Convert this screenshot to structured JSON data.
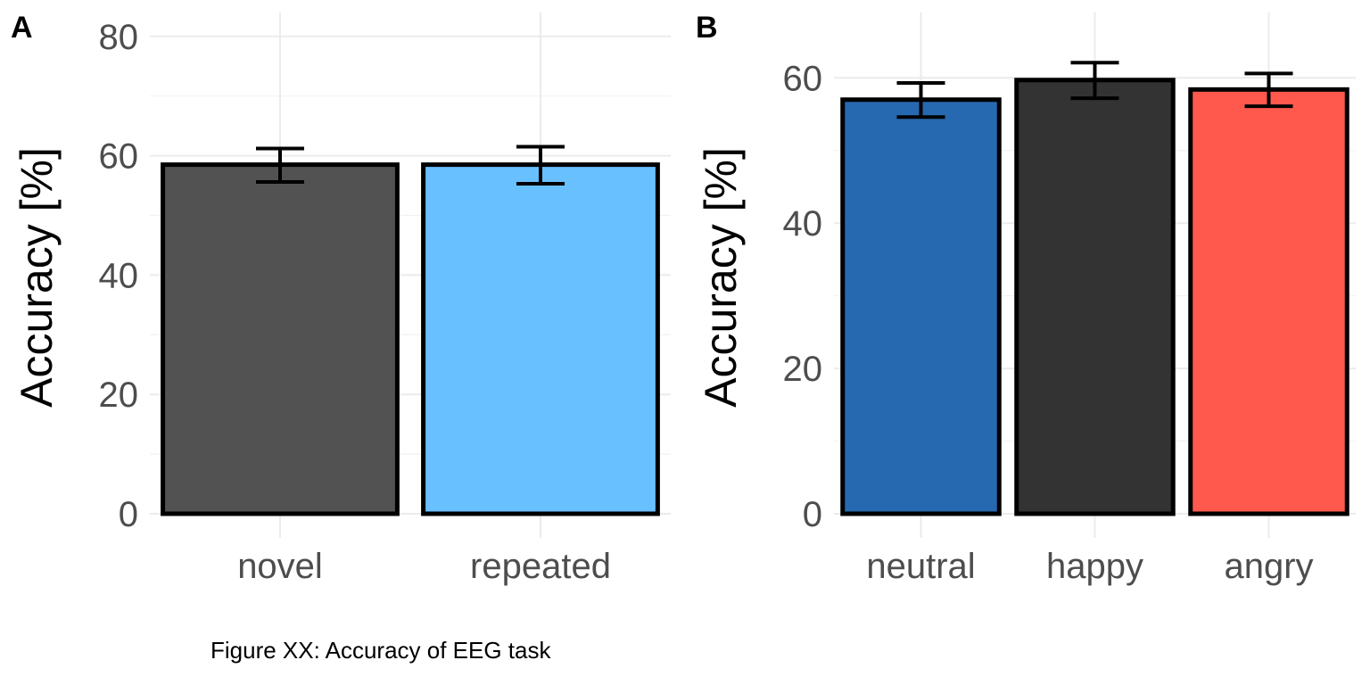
{
  "caption": "Figure XX: Accuracy of EEG task",
  "chart_data": [
    {
      "panel": "A",
      "type": "bar",
      "ylabel": "Accuracy [%]",
      "xlabel": "",
      "ylim": [
        0,
        84
      ],
      "y_ticks": [
        0,
        20,
        40,
        60,
        80
      ],
      "categories": [
        "novel",
        "repeated"
      ],
      "values": [
        58.5,
        58.5
      ],
      "error_low": [
        55.6,
        55.3
      ],
      "error_high": [
        61.2,
        61.5
      ],
      "colors": [
        "#525252",
        "#69C0FF"
      ],
      "grid": true,
      "legend": "none"
    },
    {
      "panel": "B",
      "type": "bar",
      "ylabel": "Accuracy [%]",
      "xlabel": "",
      "ylim": [
        0,
        69
      ],
      "y_ticks": [
        0,
        20,
        40,
        60
      ],
      "categories": [
        "neutral",
        "happy",
        "angry"
      ],
      "values": [
        57.0,
        59.7,
        58.4
      ],
      "error_low": [
        54.6,
        57.2,
        56.1
      ],
      "error_high": [
        59.3,
        62.1,
        60.6
      ],
      "colors": [
        "#2769B0",
        "#333333",
        "#FF594D"
      ],
      "grid": true,
      "legend": "none"
    }
  ]
}
